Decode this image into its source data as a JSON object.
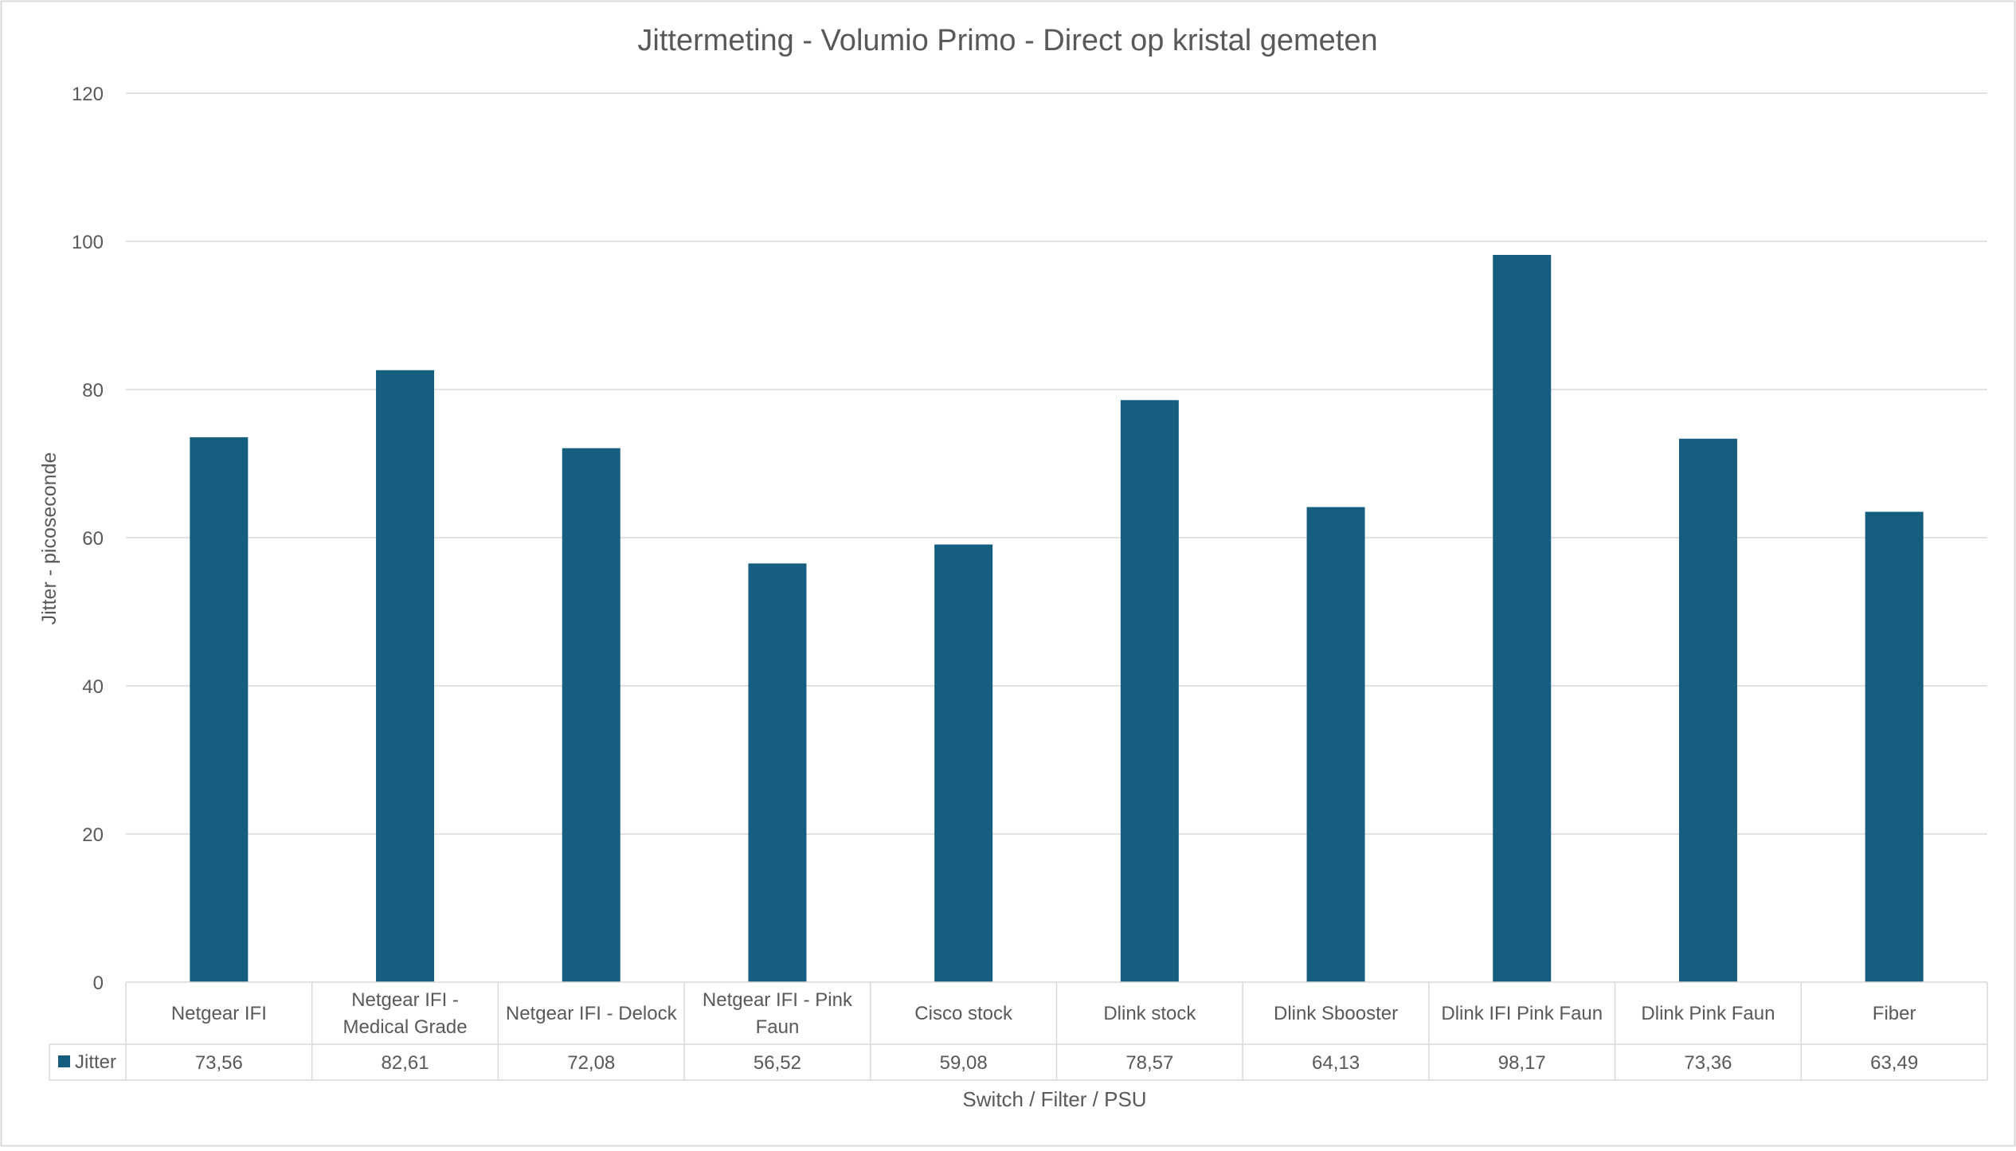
{
  "chart_data": {
    "type": "bar",
    "title": "Jittermeting - Volumio Primo - Direct op kristal gemeten",
    "xlabel": "Switch / Filter / PSU",
    "ylabel": "Jitter - picoseconde",
    "ylim": [
      0,
      120
    ],
    "yticks": [
      "0",
      "20",
      "40",
      "60",
      "80",
      "100",
      "120"
    ],
    "grid": true,
    "legend_position": "data-table",
    "categories": [
      [
        "Netgear IFI"
      ],
      [
        "Netgear IFI -",
        "Medical Grade"
      ],
      [
        "Netgear IFI - Delock"
      ],
      [
        "Netgear IFI - Pink",
        "Faun"
      ],
      [
        "Cisco stock"
      ],
      [
        "Dlink stock"
      ],
      [
        "Dlink Sbooster"
      ],
      [
        "Dlink IFI Pink Faun"
      ],
      [
        "Dlink Pink Faun"
      ],
      [
        "Fiber"
      ]
    ],
    "series": [
      {
        "name": "Jitter",
        "color": "#155e80",
        "values": [
          73.56,
          82.61,
          72.08,
          56.52,
          59.08,
          78.57,
          64.13,
          98.17,
          73.36,
          63.49
        ],
        "value_labels": [
          "73,56",
          "82,61",
          "72,08",
          "56,52",
          "59,08",
          "78,57",
          "64,13",
          "98,17",
          "73,36",
          "63,49"
        ]
      }
    ],
    "colors": {
      "gridline": "#d9d9d9",
      "table_border": "#d9d9d9",
      "text": "#595959",
      "title": "#595959"
    }
  }
}
